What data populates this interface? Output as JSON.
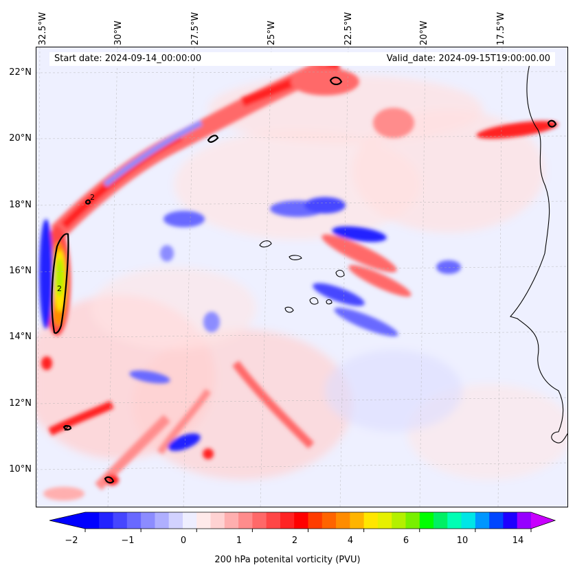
{
  "map": {
    "start_date": "Start date: 2024-09-14_00:00:00",
    "valid_date": "Valid_date: 2024-09-15T19:00:00.00",
    "lon_labels": [
      "32.5°W",
      "30°W",
      "27.5°W",
      "25°W",
      "22.5°W",
      "20°W",
      "17.5°W"
    ],
    "lat_labels": [
      "22°N",
      "20°N",
      "18°N",
      "16°N",
      "14°N",
      "12°N",
      "10°N"
    ],
    "contour_label": "2"
  },
  "colorbar": {
    "title": "200 hPa potenital vorticity (PVU)",
    "tick_labels": [
      "−2",
      "−1",
      "0",
      "1",
      "2",
      "4",
      "6",
      "10",
      "14"
    ],
    "colors": [
      "#0000ff",
      "#2323ff",
      "#4646ff",
      "#6969ff",
      "#8c8cff",
      "#afafff",
      "#d2d2ff",
      "#eeeeff",
      "#ffeaea",
      "#ffd2d2",
      "#ffafaf",
      "#ff8c8c",
      "#ff6969",
      "#ff4646",
      "#ff2323",
      "#ff0000",
      "#ff3c00",
      "#ff6400",
      "#ff8c00",
      "#ffb400",
      "#ffe600",
      "#e6f000",
      "#b4f000",
      "#78f000",
      "#00ff00",
      "#00f064",
      "#00ffb4",
      "#00e6e6",
      "#0096ff",
      "#0046ff",
      "#1e00ff",
      "#9600ff"
    ],
    "under_color": "#0000ff",
    "over_color": "#c800ff"
  }
}
